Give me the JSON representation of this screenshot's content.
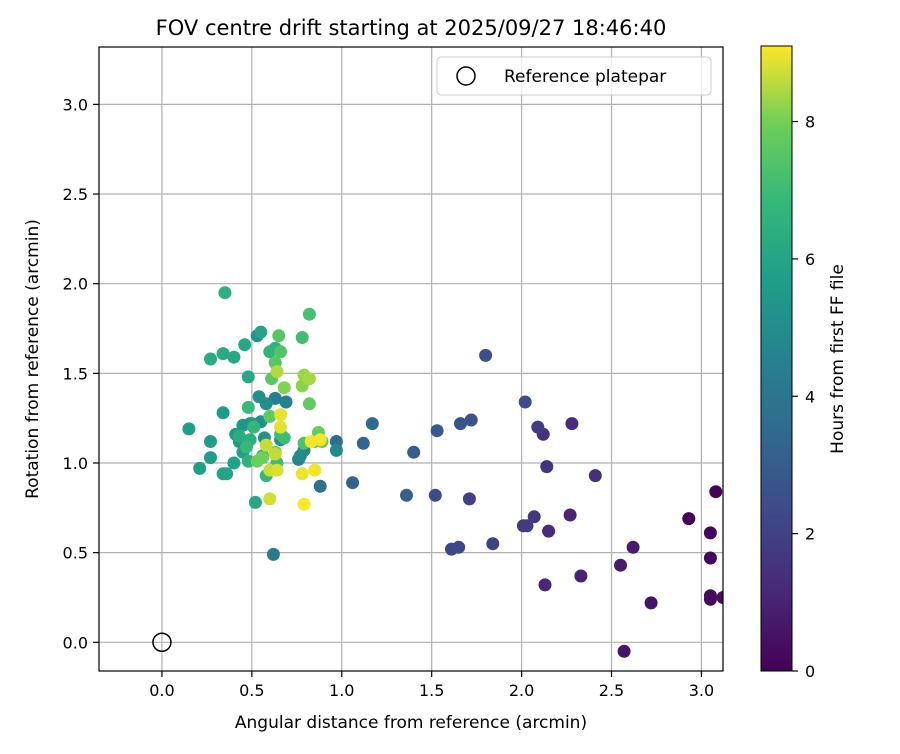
{
  "chart_data": {
    "type": "scatter",
    "title": "FOV centre drift starting at 2025/09/27 18:46:40",
    "xlabel": "Angular distance from reference (arcmin)",
    "ylabel": "Rotation from reference (arcmin)",
    "xlim": [
      -0.35,
      3.12
    ],
    "ylim": [
      -0.16,
      3.32
    ],
    "xticks": [
      0.0,
      0.5,
      1.0,
      1.5,
      2.0,
      2.5,
      3.0
    ],
    "xtick_labels": [
      "0.0",
      "0.5",
      "1.0",
      "1.5",
      "2.0",
      "2.5",
      "3.0"
    ],
    "yticks": [
      0.0,
      0.5,
      1.0,
      1.5,
      2.0,
      2.5,
      3.0
    ],
    "ytick_labels": [
      "0.0",
      "0.5",
      "1.0",
      "1.5",
      "2.0",
      "2.5",
      "3.0"
    ],
    "grid": true,
    "legend": {
      "position": "top-right",
      "entries": [
        "Reference platepar"
      ]
    },
    "reference_point": {
      "x": 0.0,
      "y": 0.0,
      "label": "Reference platepar"
    },
    "colorbar": {
      "label": "Hours from first FF file",
      "range": [
        0,
        9.1
      ],
      "ticks": [
        0,
        2,
        4,
        6,
        8
      ],
      "tick_labels": [
        "0",
        "2",
        "4",
        "6",
        "8"
      ],
      "colormap": "viridis"
    },
    "series": [
      {
        "name": "FOV centre drift",
        "x": [
          3.08,
          2.93,
          3.05,
          3.05,
          3.05,
          3.05,
          3.12,
          2.72,
          2.57,
          2.62,
          2.55,
          2.33,
          2.27,
          2.13,
          2.15,
          2.28,
          2.41,
          2.12,
          2.14,
          2.07,
          2.01,
          2.03,
          2.09,
          1.71,
          1.84,
          1.61,
          1.65,
          1.52,
          2.02,
          1.8,
          1.72,
          1.66,
          1.53,
          1.4,
          1.36,
          1.06,
          1.12,
          1.17,
          0.97,
          0.88,
          0.62,
          0.63,
          0.69,
          0.76,
          0.79,
          0.97,
          0.77,
          0.66,
          0.58,
          0.54,
          0.55,
          0.57,
          0.53,
          0.5,
          0.49,
          0.45,
          0.43,
          0.41,
          0.34,
          0.27,
          0.27,
          0.21,
          0.15,
          0.45,
          0.4,
          0.34,
          0.36,
          0.55,
          0.52,
          0.46,
          0.48,
          0.4,
          0.34,
          0.27,
          0.43,
          0.49,
          0.35,
          0.48,
          0.63,
          0.6,
          0.56,
          0.58,
          0.51,
          0.47,
          0.48,
          0.66,
          0.68,
          0.64,
          0.78,
          0.82,
          0.79,
          0.66,
          0.65,
          0.63,
          0.61,
          0.6,
          0.82,
          0.85,
          0.87,
          0.89,
          0.53,
          0.56,
          0.63,
          0.68,
          0.78,
          0.79,
          0.82,
          0.64,
          0.63,
          0.58,
          0.6,
          0.6,
          0.64,
          0.66,
          0.66,
          0.78,
          0.85,
          0.83,
          0.88,
          0.79
        ],
        "y": [
          0.84,
          0.69,
          0.61,
          0.47,
          0.26,
          0.24,
          0.25,
          0.22,
          -0.05,
          0.53,
          0.43,
          0.37,
          0.71,
          0.32,
          0.62,
          1.22,
          0.93,
          1.16,
          0.98,
          0.7,
          0.65,
          0.65,
          1.2,
          0.8,
          0.55,
          0.52,
          0.53,
          0.82,
          1.34,
          1.6,
          1.24,
          1.22,
          1.18,
          1.06,
          0.82,
          0.89,
          1.11,
          1.22,
          1.12,
          0.87,
          0.49,
          1.36,
          1.34,
          1.02,
          1.07,
          1.07,
          1.04,
          1.13,
          1.33,
          1.37,
          1.23,
          1.14,
          1.71,
          1.22,
          1.22,
          1.21,
          1.12,
          1.16,
          1.28,
          1.12,
          1.03,
          0.97,
          1.19,
          1.06,
          1.0,
          0.94,
          0.94,
          1.73,
          0.78,
          1.66,
          1.48,
          1.59,
          1.61,
          1.58,
          1.15,
          1.13,
          1.95,
          1.01,
          1.64,
          1.62,
          1.04,
          0.93,
          1.2,
          1.09,
          1.31,
          1.16,
          1.14,
          1.0,
          1.7,
          1.83,
          1.11,
          1.62,
          1.71,
          1.56,
          1.47,
          1.26,
          1.33,
          1.12,
          1.17,
          1.12,
          1.01,
          1.03,
          1.06,
          1.42,
          1.43,
          1.49,
          1.47,
          1.51,
          1.05,
          1.1,
          0.96,
          0.8,
          0.96,
          1.2,
          1.27,
          0.94,
          0.96,
          1.12,
          1.13,
          0.77
        ],
        "hours": [
          0.05,
          0.12,
          0.18,
          0.22,
          0.28,
          0.32,
          0.38,
          0.55,
          0.62,
          0.72,
          0.8,
          0.95,
          1.05,
          1.12,
          1.2,
          1.3,
          1.4,
          1.48,
          1.55,
          1.62,
          1.7,
          1.78,
          1.85,
          1.95,
          2.05,
          2.15,
          2.25,
          2.35,
          2.45,
          2.55,
          2.65,
          2.75,
          2.85,
          3.0,
          3.1,
          3.2,
          3.35,
          3.5,
          3.6,
          3.75,
          4.3,
          4.4,
          4.5,
          4.6,
          4.7,
          4.8,
          4.9,
          5.0,
          5.05,
          5.1,
          5.15,
          5.2,
          5.25,
          5.3,
          5.35,
          5.4,
          5.45,
          5.5,
          5.55,
          5.6,
          5.65,
          5.7,
          5.75,
          5.8,
          5.85,
          5.9,
          5.95,
          6.0,
          6.05,
          6.1,
          6.15,
          6.2,
          6.25,
          6.3,
          6.35,
          6.4,
          6.45,
          6.55,
          6.6,
          6.65,
          6.7,
          6.75,
          6.8,
          6.85,
          6.9,
          6.95,
          7.0,
          7.05,
          7.1,
          7.2,
          7.3,
          7.4,
          7.5,
          7.55,
          7.6,
          7.65,
          7.7,
          7.75,
          7.8,
          7.85,
          7.9,
          7.95,
          8.0,
          8.1,
          8.2,
          8.3,
          8.4,
          8.5,
          8.6,
          8.65,
          8.7,
          8.75,
          8.8,
          8.85,
          8.9,
          8.95,
          9.0,
          9.02,
          9.05,
          9.08
        ]
      }
    ]
  }
}
